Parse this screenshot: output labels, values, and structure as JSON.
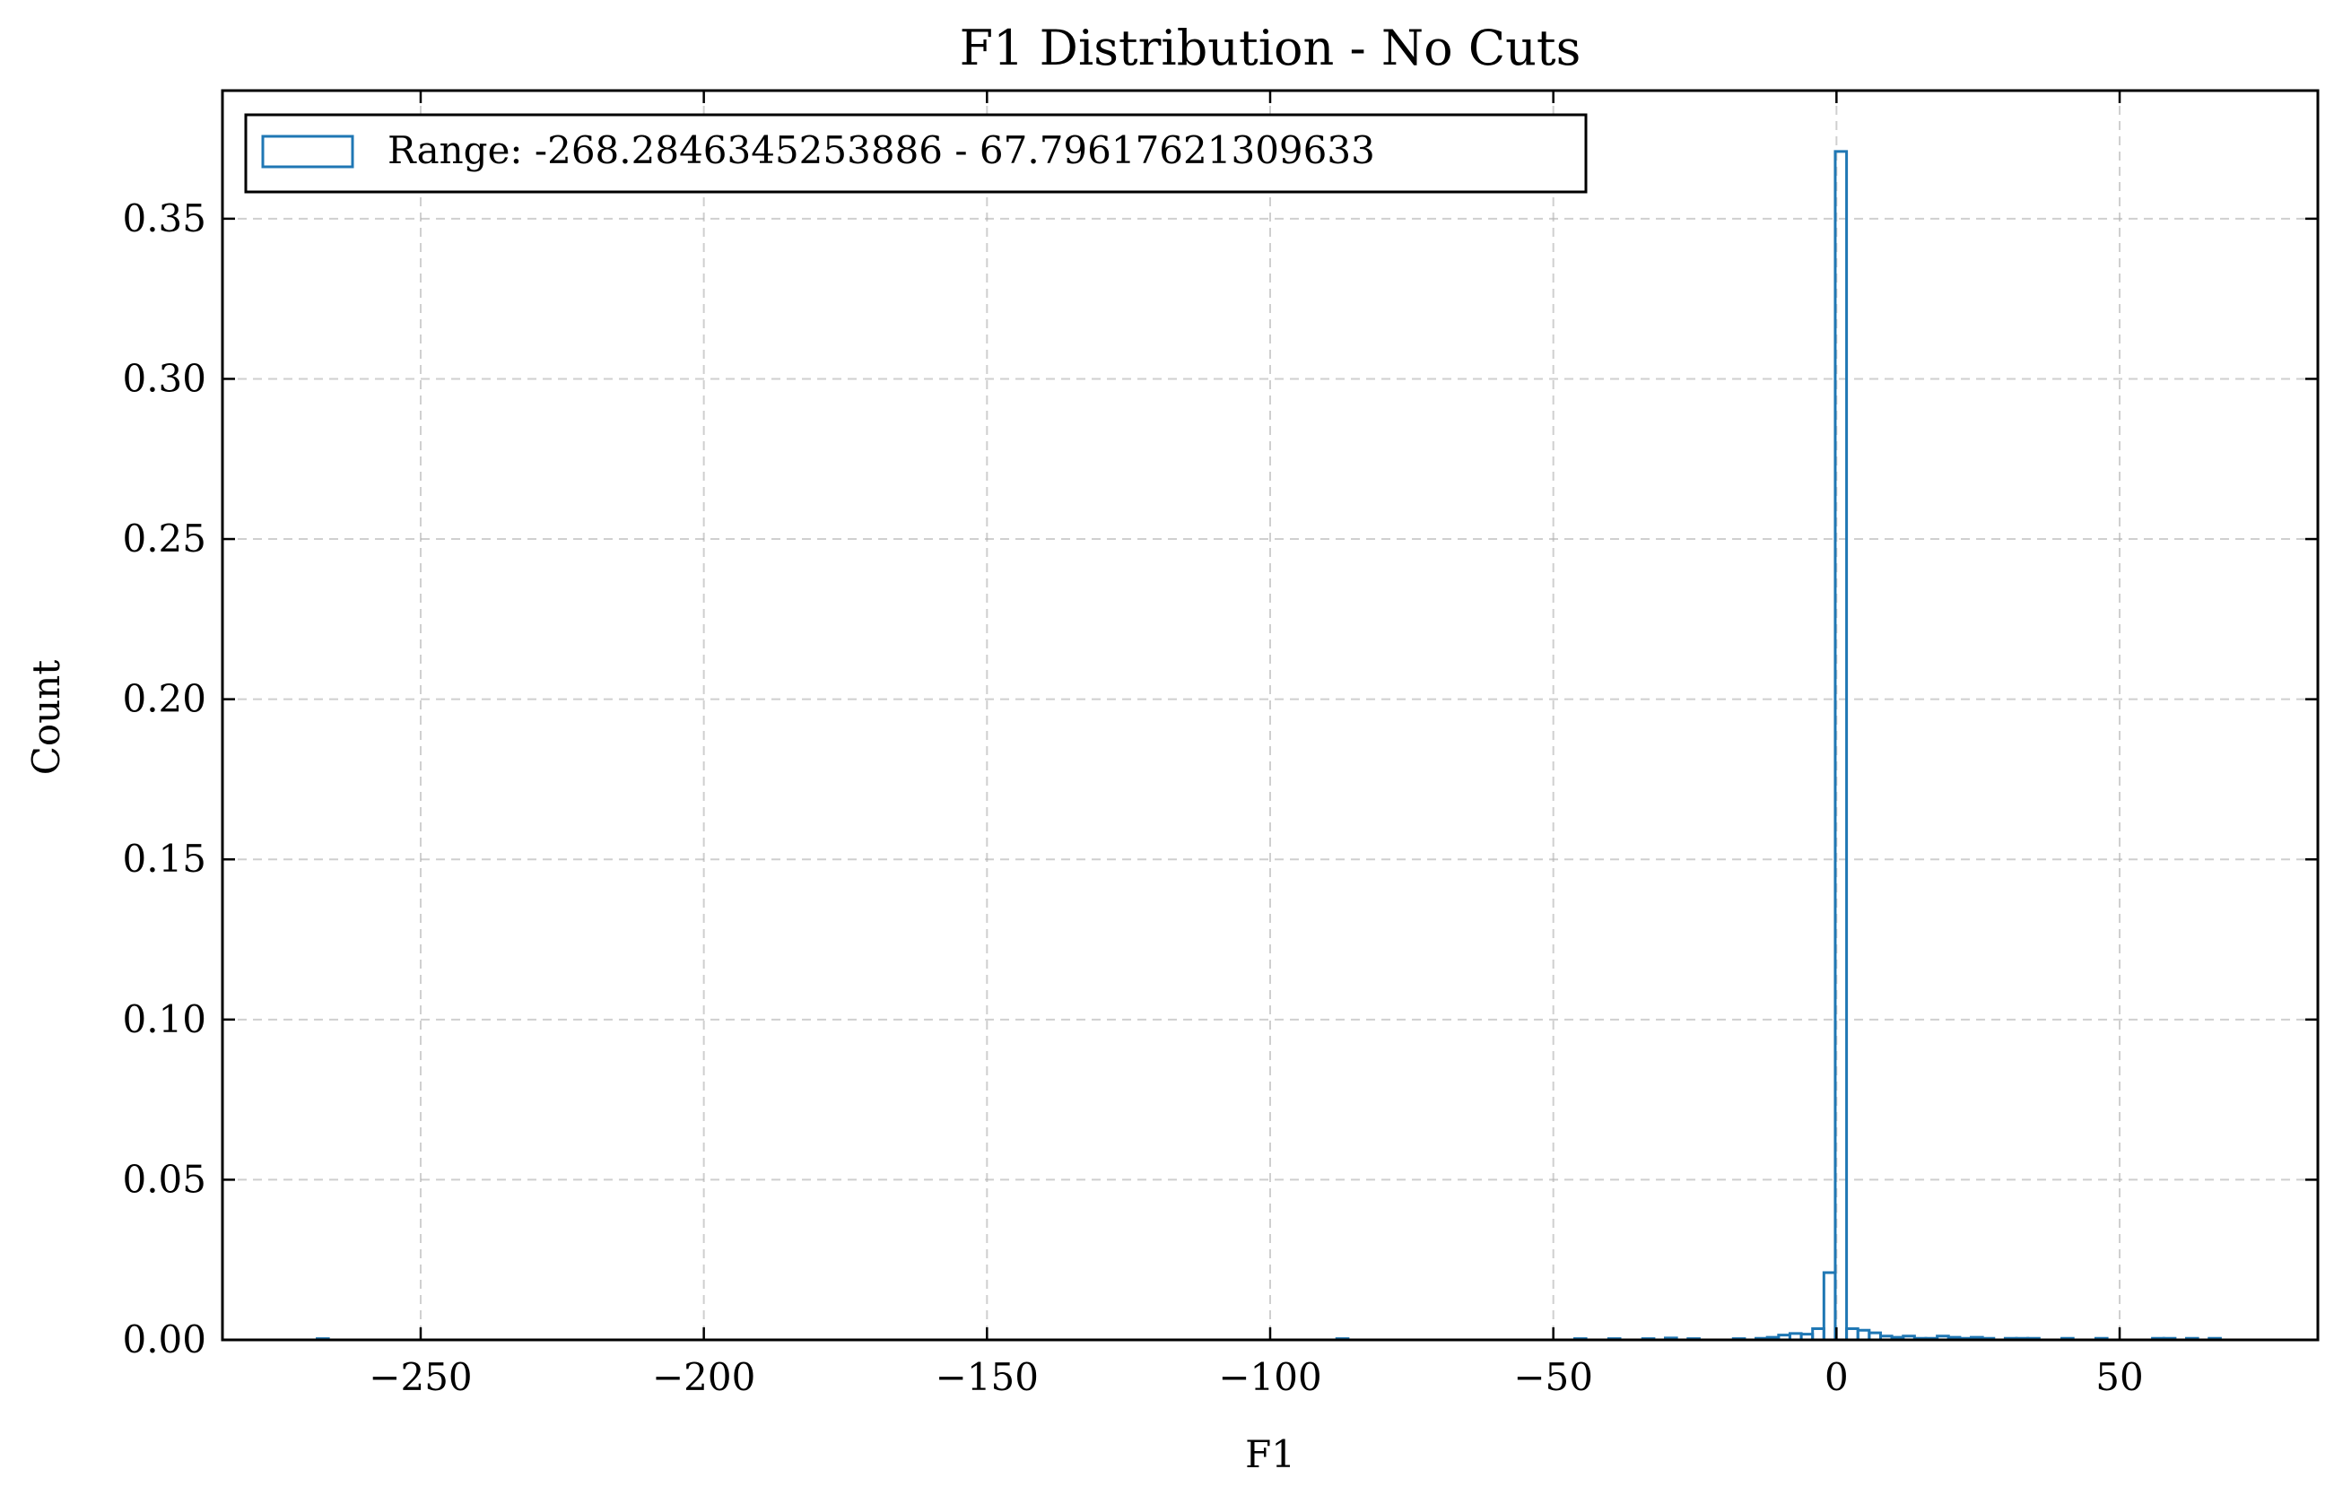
{
  "chart_data": {
    "type": "histogram",
    "title": "F1 Distribution - No Cuts",
    "xlabel": "F1",
    "ylabel": "Count",
    "xlim": [
      -285,
      85
    ],
    "ylim": [
      0,
      0.39
    ],
    "x_ticks": [
      -250,
      -200,
      -150,
      -100,
      -50,
      0,
      50
    ],
    "x_tick_labels": [
      "−250",
      "−200",
      "−150",
      "−100",
      "−50",
      "0",
      "50"
    ],
    "y_ticks": [
      0.0,
      0.05,
      0.1,
      0.15,
      0.2,
      0.25,
      0.3,
      0.35
    ],
    "y_tick_labels": [
      "0.00",
      "0.05",
      "0.10",
      "0.15",
      "0.20",
      "0.25",
      "0.30",
      "0.35"
    ],
    "grid": true,
    "legend": {
      "position": "top-left",
      "entries": [
        "Range: -268.2846345253886 - 67.79617621309633"
      ]
    },
    "series": [
      {
        "name": "Range: -268.2846345253886 - 67.79617621309633",
        "color": "#1f77b4",
        "bin_range": [
          -268.2846345253886,
          67.79617621309633
        ],
        "bin_count": 168,
        "nonzero_bins": [
          {
            "x": -268.28,
            "y": 0.0004
          },
          {
            "x": -87.0,
            "y": 0.0004
          },
          {
            "x": -46.0,
            "y": 0.0004
          },
          {
            "x": -40.0,
            "y": 0.0004
          },
          {
            "x": -33.0,
            "y": 0.0004
          },
          {
            "x": -29.0,
            "y": 0.0006
          },
          {
            "x": -25.0,
            "y": 0.0004
          },
          {
            "x": -17.0,
            "y": 0.0004
          },
          {
            "x": -13.0,
            "y": 0.0005
          },
          {
            "x": -11.0,
            "y": 0.0008
          },
          {
            "x": -9.0,
            "y": 0.0015
          },
          {
            "x": -7.0,
            "y": 0.002
          },
          {
            "x": -5.0,
            "y": 0.0018
          },
          {
            "x": -3.0,
            "y": 0.0035
          },
          {
            "x": -1.0,
            "y": 0.021
          },
          {
            "x": 1.0,
            "y": 0.371
          },
          {
            "x": 3.0,
            "y": 0.0035
          },
          {
            "x": 5.0,
            "y": 0.003
          },
          {
            "x": 7.0,
            "y": 0.0022
          },
          {
            "x": 9.0,
            "y": 0.0012
          },
          {
            "x": 11.0,
            "y": 0.0008
          },
          {
            "x": 13.0,
            "y": 0.0012
          },
          {
            "x": 15.0,
            "y": 0.0005
          },
          {
            "x": 17.0,
            "y": 0.0005
          },
          {
            "x": 19.0,
            "y": 0.0012
          },
          {
            "x": 21.0,
            "y": 0.0008
          },
          {
            "x": 23.0,
            "y": 0.0005
          },
          {
            "x": 25.0,
            "y": 0.0008
          },
          {
            "x": 27.0,
            "y": 0.0005
          },
          {
            "x": 31.0,
            "y": 0.0005
          },
          {
            "x": 33.0,
            "y": 0.0005
          },
          {
            "x": 35.0,
            "y": 0.0005
          },
          {
            "x": 41.0,
            "y": 0.0005
          },
          {
            "x": 47.0,
            "y": 0.0005
          },
          {
            "x": 57.0,
            "y": 0.0005
          },
          {
            "x": 59.0,
            "y": 0.0005
          },
          {
            "x": 63.0,
            "y": 0.0005
          },
          {
            "x": 67.0,
            "y": 0.0005
          }
        ]
      }
    ]
  }
}
